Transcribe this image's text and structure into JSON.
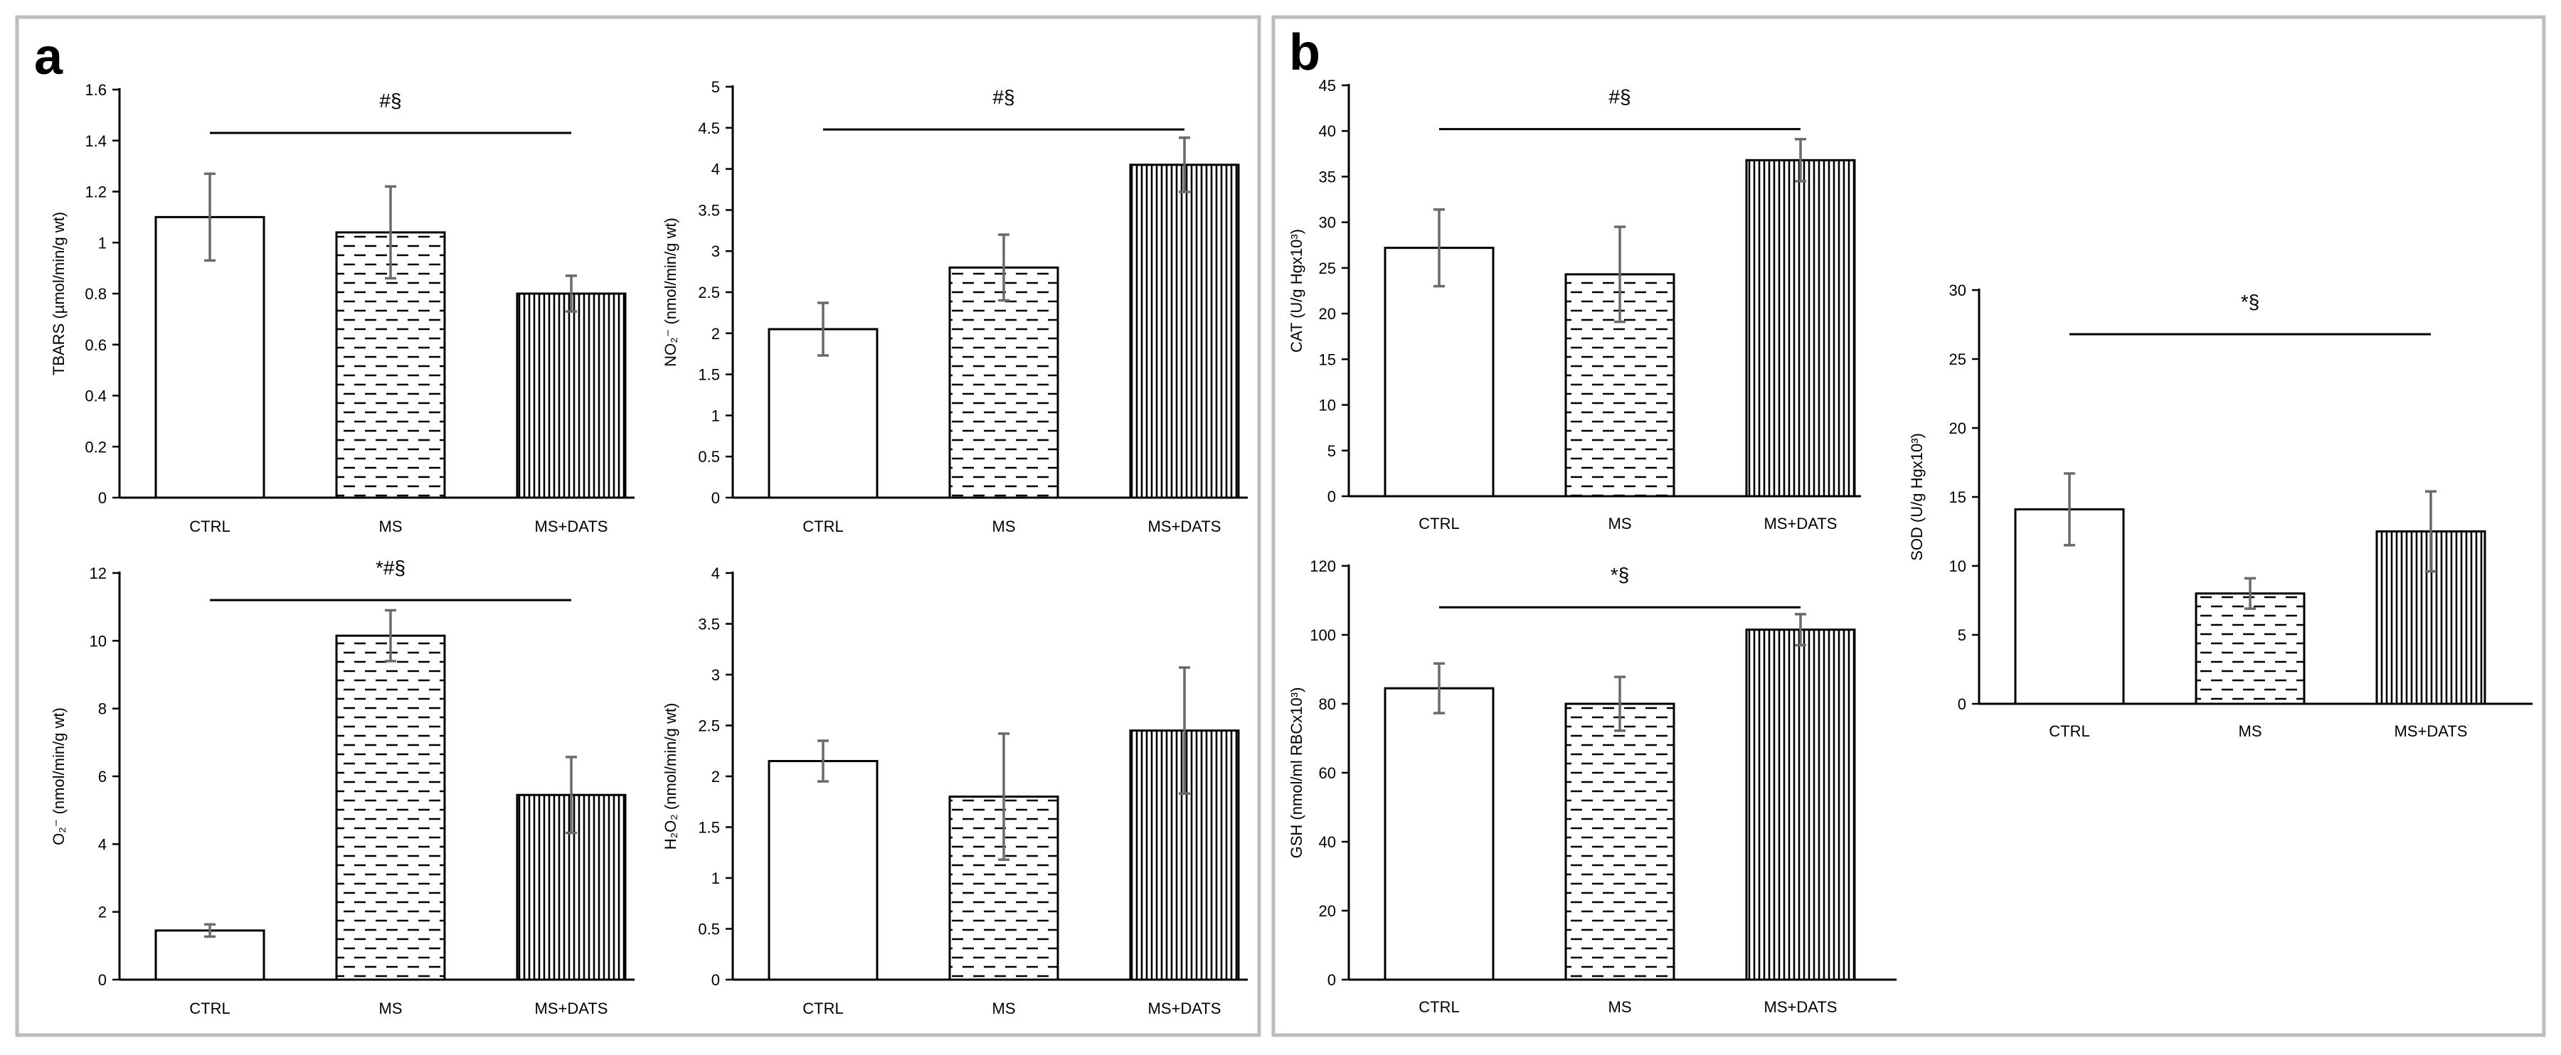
{
  "figure": {
    "panel_labels": [
      "a",
      "b"
    ]
  },
  "chart_data": [
    {
      "type": "bar",
      "panel": "a",
      "categories": [
        "CTRL",
        "MS",
        "MS+DATS"
      ],
      "values": [
        1.1,
        1.04,
        0.8
      ],
      "errors": [
        0.17,
        0.18,
        0.07
      ],
      "ylabel": "TBARS (µmol/min/g wt)",
      "ylim": [
        0,
        1.6
      ],
      "yticks": [
        "0",
        "0.2",
        "0.4",
        "0.6",
        "0.8",
        "1",
        "1.2",
        "1.4",
        "1.6"
      ],
      "significance": "#§",
      "sig_y": 1.43,
      "sig_from": 0,
      "sig_to": 2
    },
    {
      "type": "bar",
      "panel": "a",
      "categories": [
        "CTRL",
        "MS",
        "MS+DATS"
      ],
      "values": [
        2.05,
        2.8,
        4.05
      ],
      "errors": [
        0.32,
        0.4,
        0.33
      ],
      "ylabel": "NO₂⁻ (nmol/min/g wt)",
      "ylim": [
        0,
        5
      ],
      "yticks": [
        "0",
        "0.5",
        "1",
        "1.5",
        "2",
        "2.5",
        "3",
        "3.5",
        "4",
        "4.5",
        "5"
      ],
      "significance": "#§",
      "sig_y": 4.48,
      "sig_from": 0,
      "sig_to": 2
    },
    {
      "type": "bar",
      "panel": "a",
      "categories": [
        "CTRL",
        "MS",
        "MS+DATS"
      ],
      "values": [
        1.45,
        10.15,
        5.45
      ],
      "errors": [
        0.18,
        0.75,
        1.12
      ],
      "ylabel": "O₂⁻ (nmol/min/g wt)",
      "ylim": [
        0,
        12
      ],
      "yticks": [
        "0",
        "2",
        "4",
        "6",
        "8",
        "10",
        "12"
      ],
      "significance": "*#§",
      "sig_y": 11.2,
      "sig_from": 0,
      "sig_to": 2
    },
    {
      "type": "bar",
      "panel": "a",
      "categories": [
        "CTRL",
        "MS",
        "MS+DATS"
      ],
      "values": [
        2.15,
        1.8,
        2.45
      ],
      "errors": [
        0.2,
        0.62,
        0.62
      ],
      "ylabel": "H₂O₂ (nmol/min/g wt)",
      "ylim": [
        0,
        4
      ],
      "yticks": [
        "0",
        "0.5",
        "1",
        "1.5",
        "2",
        "2.5",
        "3",
        "3.5",
        "4"
      ],
      "significance": "",
      "sig_y": null,
      "sig_from": 0,
      "sig_to": 2
    },
    {
      "type": "bar",
      "panel": "b",
      "categories": [
        "CTRL",
        "MS",
        "MS+DATS"
      ],
      "values": [
        27.2,
        24.3,
        36.8
      ],
      "errors": [
        4.2,
        5.2,
        2.3
      ],
      "ylabel": "CAT (U/g Hgx10³)",
      "ylim": [
        0,
        45
      ],
      "yticks": [
        "0",
        "5",
        "10",
        "15",
        "20",
        "25",
        "30",
        "35",
        "40",
        "45"
      ],
      "significance": "#§",
      "sig_y": 40.2,
      "sig_from": 0,
      "sig_to": 2
    },
    {
      "type": "bar",
      "panel": "b",
      "categories": [
        "CTRL",
        "MS",
        "MS+DATS"
      ],
      "values": [
        84.5,
        80,
        101.5
      ],
      "errors": [
        7.2,
        7.8,
        4.5
      ],
      "ylabel": "GSH (nmol/ml RBCx10³)",
      "ylim": [
        0,
        120
      ],
      "yticks": [
        "0",
        "20",
        "40",
        "60",
        "80",
        "100",
        "120"
      ],
      "significance": "*§",
      "sig_y": 108,
      "sig_from": 0,
      "sig_to": 2
    },
    {
      "type": "bar",
      "panel": "b",
      "categories": [
        "CTRL",
        "MS",
        "MS+DATS"
      ],
      "values": [
        14.1,
        8,
        12.5
      ],
      "errors": [
        2.6,
        1.1,
        2.9
      ],
      "ylabel": "SOD (U/g Hgx10³)",
      "ylim": [
        0,
        30
      ],
      "yticks": [
        "0",
        "5",
        "10",
        "15",
        "20",
        "25",
        "30"
      ],
      "significance": "*§",
      "sig_y": 26.8,
      "sig_from": 0,
      "sig_to": 2
    }
  ]
}
